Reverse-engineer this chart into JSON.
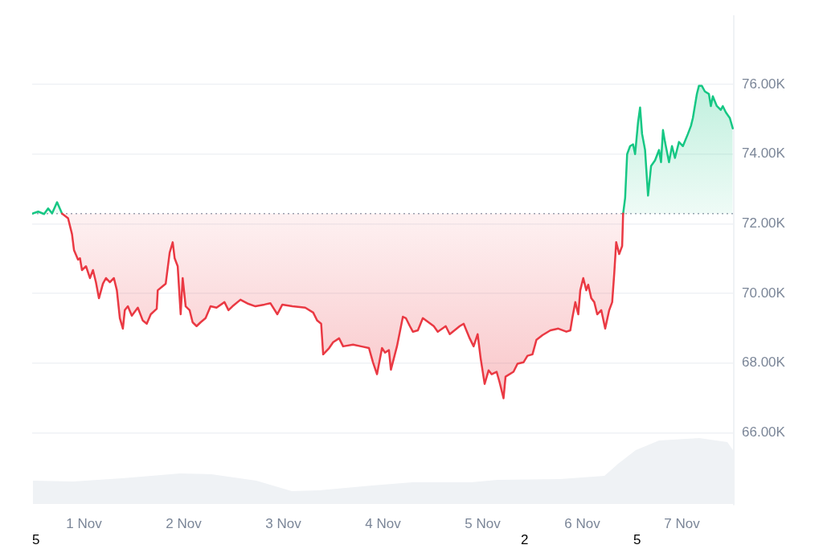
{
  "chart_data": {
    "type": "area",
    "xlim": [
      "--10-31T11:31",
      "--11-07T12:29"
    ],
    "xticks": [
      {
        "value": "--11-01",
        "label": "1 Nov"
      },
      {
        "value": "--11-02",
        "label": "2 Nov"
      },
      {
        "value": "--11-03",
        "label": "3 Nov"
      },
      {
        "value": "--11-04",
        "label": "4 Nov"
      },
      {
        "value": "--11-05",
        "label": "5 Nov"
      },
      {
        "value": "--11-06",
        "label": "6 Nov"
      },
      {
        "value": "--11-07",
        "label": "7 Nov"
      }
    ],
    "ylim": [
      63930,
      77960
    ],
    "yticks": [
      {
        "value": 66000,
        "label": "66.00K"
      },
      {
        "value": 68000,
        "label": "68.00K"
      },
      {
        "value": 70000,
        "label": "70.00K"
      },
      {
        "value": 72000,
        "label": "72.00K"
      },
      {
        "value": 74000,
        "label": "74.00K"
      },
      {
        "value": 76000,
        "label": "76.00K"
      }
    ],
    "grid": "y",
    "legend": false,
    "marker": "none",
    "line_style": "solid",
    "ref_lines": [
      {
        "axis": "y",
        "value": 72290,
        "color": "#9aa3b2",
        "line_style": "dotted"
      }
    ],
    "annotations": [
      "5",
      "2",
      "5"
    ],
    "series": [
      {
        "type": "area",
        "color": "#ea3943",
        "x": [
          "--10-31T18:43",
          "--10-31T20:10",
          "--10-31T21:07",
          "--10-31T21:36",
          "--10-31T22:34",
          "--10-31T23:02",
          "--10-31T23:31",
          "--11-01T00:29",
          "--11-01T01:26",
          "--11-01T02:10",
          "--11-01T02:53",
          "--11-01T03:36",
          "--11-01T04:34",
          "--11-01T05:17",
          "--11-01T06:14",
          "--11-01T07:12",
          "--11-01T07:55",
          "--11-01T08:38",
          "--11-01T09:22",
          "--11-01T09:50",
          "--11-01T10:34",
          "--11-01T11:31",
          "--11-01T12:58",
          "--11-01T14:10",
          "--11-01T15:07",
          "--11-01T16:05",
          "--11-01T17:31",
          "--11-01T17:46",
          "--11-01T18:58",
          "--11-01T19:41",
          "--11-01T20:38",
          "--11-01T21:22",
          "--11-01T21:50",
          "--11-01T22:34",
          "--11-01T23:17",
          "--11-01T23:46",
          "--11-02T00:29",
          "--11-02T01:26",
          "--11-02T02:10",
          "--11-02T03:07",
          "--11-02T04:05",
          "--11-02T05:17",
          "--11-02T06:29",
          "--11-02T07:55",
          "--11-02T09:50",
          "--11-02T10:48",
          "--11-02T11:46",
          "--11-02T13:41",
          "--11-02T15:36",
          "--11-02T17:17",
          "--11-02T19:26",
          "--11-02T20:53",
          "--11-02T22:34",
          "--11-02T23:46",
          "--11-03T02:10",
          "--11-03T05:17",
          "--11-03T07:12",
          "--11-03T08:10",
          "--11-03T09:07",
          "--11-03T09:36",
          "--11-03T11:02",
          "--11-03T12:00",
          "--11-03T13:26",
          "--11-03T14:24",
          "--11-03T16:48",
          "--11-03T18:43",
          "--11-03T20:38",
          "--11-03T21:36",
          "--11-03T22:34",
          "--11-03T23:46",
          "--11-04T00:29",
          "--11-04T01:26",
          "--11-04T01:55",
          "--11-04T03:22",
          "--11-04T04:48",
          "--11-04T05:31",
          "--11-04T06:29",
          "--11-04T07:12",
          "--11-04T08:24",
          "--11-04T09:36",
          "--11-04T12:14",
          "--11-04T13:12",
          "--11-04T15:07",
          "--11-04T16:05",
          "--11-04T18:29",
          "--11-04T19:26",
          "--11-04T20:53",
          "--11-04T21:50",
          "--11-04T22:48",
          "--11-04T23:31",
          "--11-05T00:29",
          "--11-05T01:26",
          "--11-05T02:10",
          "--11-05T03:22",
          "--11-05T04:05",
          "--11-05T05:02",
          "--11-05T05:31",
          "--11-05T07:26",
          "--11-05T08:24",
          "--11-05T09:50",
          "--11-05T10:48",
          "--11-05T12:00",
          "--11-05T12:58",
          "--11-05T14:24",
          "--11-05T16:19",
          "--11-05T18:14",
          "--11-05T20:10",
          "--11-05T21:07",
          "--11-05T21:36",
          "--11-05T22:19",
          "--11-05T23:02",
          "--11-05T23:31",
          "--11-06T00:14",
          "--11-06T00:58",
          "--11-06T01:26",
          "--11-06T02:10",
          "--11-06T02:53",
          "--11-06T03:36",
          "--11-06T04:34",
          "--11-06T05:31",
          "--11-06T06:29",
          "--11-06T07:12",
          "--11-06T07:41",
          "--11-06T08:10",
          "--11-06T08:53",
          "--11-06T09:36",
          "--11-06T09:50"
        ],
        "values": [
          72290,
          72160,
          71700,
          71240,
          70970,
          71010,
          70670,
          70780,
          70440,
          70670,
          70320,
          69860,
          70280,
          70440,
          70320,
          70440,
          70090,
          69290,
          68990,
          69520,
          69630,
          69360,
          69590,
          69220,
          69130,
          69400,
          69560,
          70090,
          70210,
          70280,
          71170,
          71470,
          71010,
          70780,
          69400,
          70440,
          69630,
          69520,
          69170,
          69060,
          69170,
          69290,
          69630,
          69590,
          69750,
          69520,
          69630,
          69820,
          69700,
          69630,
          69680,
          69720,
          69400,
          69680,
          69630,
          69590,
          69450,
          69220,
          69130,
          68250,
          68430,
          68600,
          68710,
          68480,
          68530,
          68480,
          68430,
          68020,
          67680,
          68430,
          68300,
          68370,
          67810,
          68480,
          69330,
          69290,
          69060,
          68900,
          68940,
          69290,
          69060,
          68900,
          69060,
          68830,
          69060,
          69130,
          68710,
          68480,
          68830,
          68140,
          67400,
          67790,
          67680,
          67750,
          67450,
          66990,
          67610,
          67750,
          67980,
          68020,
          68210,
          68250,
          68670,
          68800,
          68940,
          68990,
          68900,
          68940,
          69290,
          69750,
          69400,
          70090,
          70440,
          70090,
          70250,
          69860,
          69750,
          69400,
          69520,
          68990,
          69520,
          69750,
          70550,
          71470,
          71130,
          71360,
          72290
        ]
      },
      {
        "type": "area",
        "color": "#16c784",
        "x": [
          "--10-31T11:31",
          "--10-31T12:58",
          "--10-31T14:24",
          "--10-31T15:22",
          "--10-31T16:19",
          "--10-31T17:31",
          "--10-31T18:43",
          "--11-03T12:00",
          "--11-06T09:50",
          "--11-06T10:19",
          "--11-06T10:48",
          "--11-06T11:31",
          "--11-06T12:14",
          "--11-06T12:43",
          "--11-06T13:26",
          "--11-06T13:55",
          "--11-06T14:24",
          "--11-06T15:07",
          "--11-06T15:50",
          "--11-06T16:34",
          "--11-06T17:31",
          "--11-06T18:29",
          "--11-06T18:58",
          "--11-06T19:26",
          "--11-06T19:55",
          "--11-06T20:53",
          "--11-06T21:36",
          "--11-06T22:19",
          "--11-06T23:17",
          "--11-07T00:14",
          "--11-07T01:26",
          "--11-07T02:10",
          "--11-07T02:38",
          "--11-07T03:36",
          "--11-07T04:05",
          "--11-07T04:48",
          "--11-07T05:31",
          "--11-07T06:29",
          "--11-07T06:58",
          "--11-07T07:26",
          "--11-07T08:24",
          "--11-07T09:22",
          "--11-07T09:50",
          "--11-07T10:34",
          "--11-07T11:31",
          "--11-07T12:14"
        ],
        "values": [
          72290,
          72350,
          72280,
          72440,
          72300,
          72620,
          72290,
          null,
          72290,
          72740,
          74000,
          74230,
          74280,
          74000,
          74920,
          75340,
          74580,
          74120,
          72810,
          73660,
          73820,
          74120,
          73770,
          74690,
          74350,
          73770,
          74230,
          73890,
          74350,
          74230,
          74580,
          74810,
          75040,
          75730,
          75960,
          75960,
          75800,
          75730,
          75380,
          75660,
          75380,
          75270,
          75380,
          75200,
          75040,
          74740
        ]
      }
    ]
  }
}
